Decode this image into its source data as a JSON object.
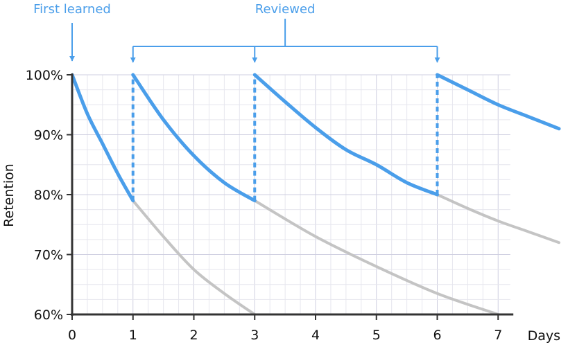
{
  "chart_data": {
    "type": "line",
    "ylabel": "Retention",
    "xlabel": "Days",
    "xlim": [
      0,
      7
    ],
    "ylim": [
      60,
      100
    ],
    "x_ticks": [
      "0",
      "1",
      "2",
      "3",
      "4",
      "5",
      "6",
      "7"
    ],
    "y_ticks": [
      "60%",
      "70%",
      "80%",
      "90%",
      "100%"
    ],
    "grid": true,
    "annotations": {
      "first_learned": "First learned",
      "reviewed": "Reviewed"
    },
    "review_days": [
      1,
      3,
      6
    ],
    "first_learned_day": 0,
    "series": [
      {
        "role": "retention-with-reviews",
        "color": "#4a9eea",
        "segments": [
          {
            "x": [
              0,
              0.25,
              0.5,
              0.75,
              1
            ],
            "y": [
              100,
              93.5,
              88.5,
              83.5,
              79
            ]
          },
          {
            "x": [
              1,
              1.5,
              2,
              2.5,
              3
            ],
            "y": [
              100,
              92.5,
              86.5,
              82,
              79
            ]
          },
          {
            "x": [
              3,
              3.5,
              4,
              4.5,
              5,
              5.5,
              6
            ],
            "y": [
              100,
              95.5,
              91.2,
              87.5,
              85,
              82,
              80
            ]
          },
          {
            "x": [
              6,
              6.5,
              7,
              7.5,
              8
            ],
            "y": [
              100,
              97.5,
              95,
              93,
              91
            ]
          }
        ]
      },
      {
        "role": "forgetting-without-review",
        "color": "#c4c4c4",
        "segments": [
          {
            "x": [
              1,
              1.5,
              2,
              2.5,
              3
            ],
            "y": [
              79,
              73,
              67.5,
              63.5,
              60
            ]
          },
          {
            "x": [
              3,
              4,
              5,
              6,
              7
            ],
            "y": [
              79,
              73,
              68,
              63.5,
              60
            ]
          },
          {
            "x": [
              6,
              6.5,
              7,
              7.5,
              8
            ],
            "y": [
              80,
              77.7,
              75.6,
              73.8,
              72
            ]
          }
        ]
      }
    ]
  }
}
